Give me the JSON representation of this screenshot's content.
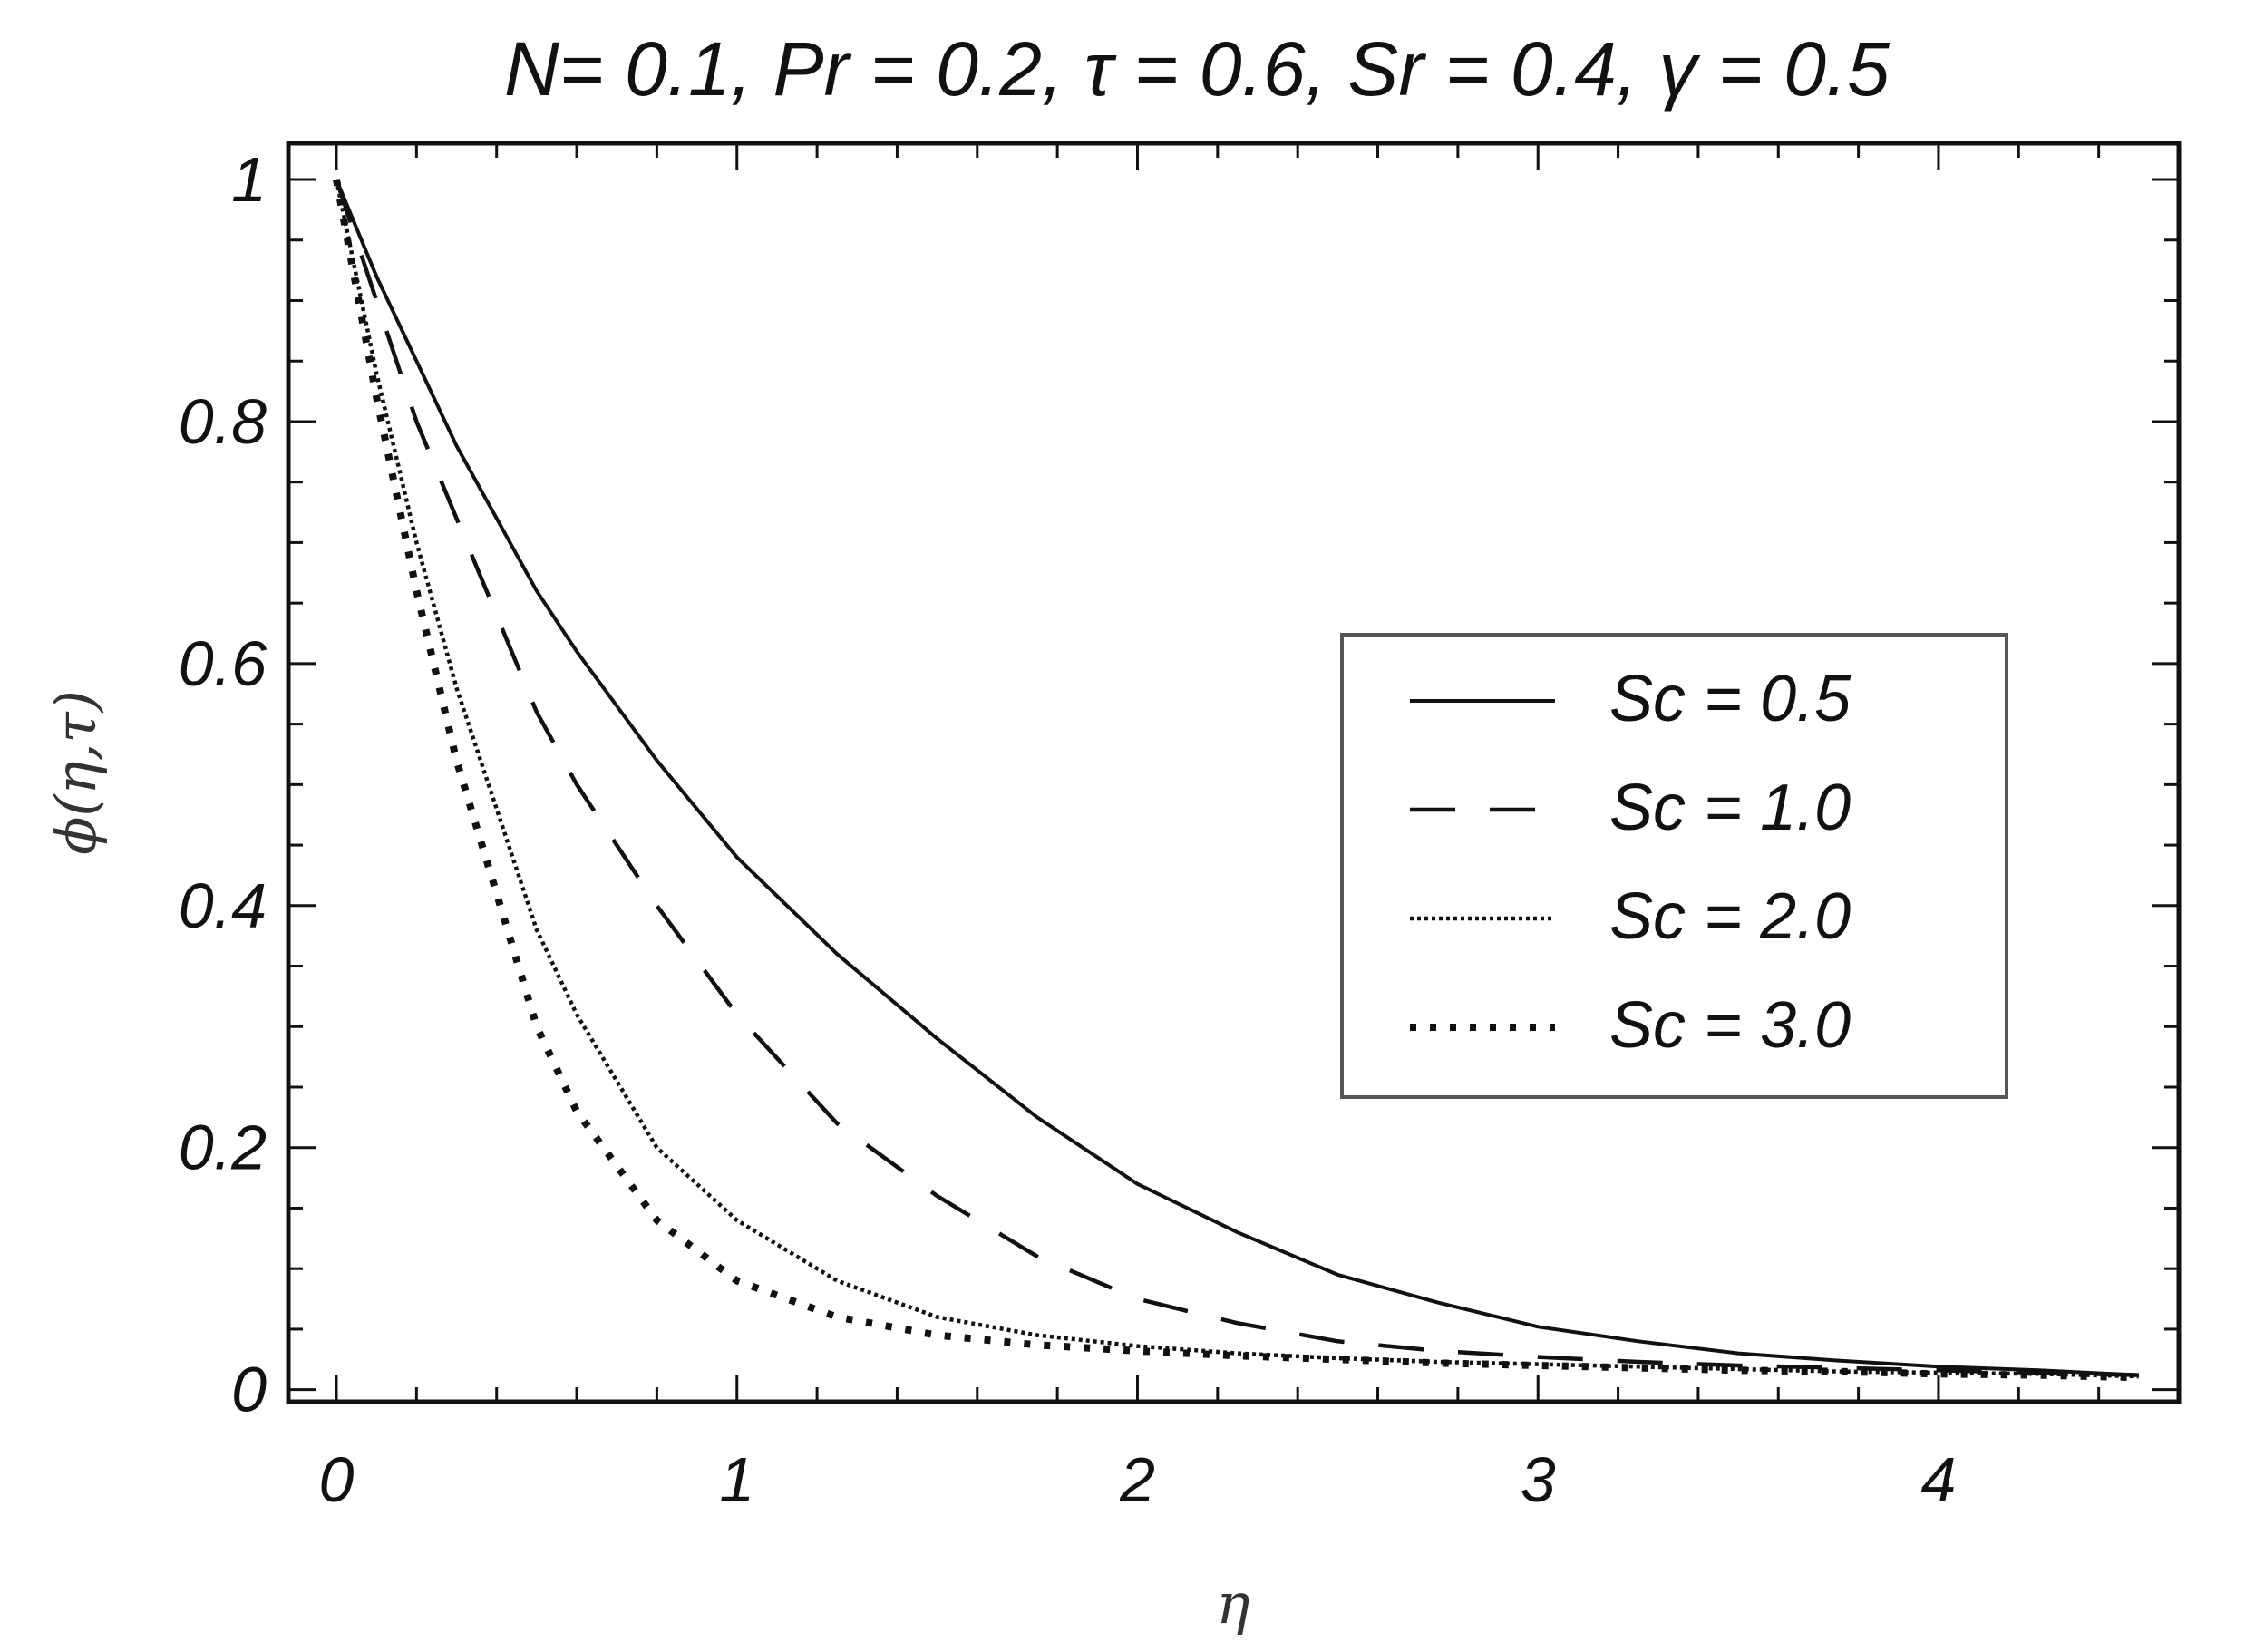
{
  "chart_data": {
    "type": "line",
    "title": "N= 0.1, Pr = 0.2, τ = 0.6, Sr = 0.4, γ = 0.5",
    "xlabel": "η",
    "ylabel": "ϕ(η,τ)",
    "xlim": [
      -0.12,
      4.6
    ],
    "ylim": [
      -0.01,
      1.03
    ],
    "xticks": [
      0,
      1,
      2,
      3,
      4
    ],
    "xtick_labels": [
      "0",
      "1",
      "2",
      "3",
      "4"
    ],
    "yticks": [
      0,
      0.2,
      0.4,
      0.6,
      0.8,
      1
    ],
    "ytick_labels": [
      "0",
      "0.2",
      "0.4",
      "0.6",
      "0.8",
      "1"
    ],
    "grid": false,
    "legend_position": "center-right",
    "x": [
      0,
      0.1,
      0.2,
      0.3,
      0.4,
      0.5,
      0.6,
      0.8,
      1.0,
      1.25,
      1.5,
      1.75,
      2.0,
      2.25,
      2.5,
      2.75,
      3.0,
      3.25,
      3.5,
      3.75,
      4.0,
      4.25,
      4.5
    ],
    "series": [
      {
        "name": "Sc = 0.5",
        "style": "solid",
        "values": [
          1.0,
          0.92,
          0.85,
          0.78,
          0.72,
          0.66,
          0.61,
          0.52,
          0.44,
          0.36,
          0.29,
          0.225,
          0.17,
          0.13,
          0.095,
          0.072,
          0.052,
          0.04,
          0.03,
          0.024,
          0.019,
          0.016,
          0.012
        ]
      },
      {
        "name": "Sc = 1.0",
        "style": "dashed",
        "values": [
          1.0,
          0.9,
          0.8,
          0.72,
          0.64,
          0.56,
          0.5,
          0.4,
          0.31,
          0.22,
          0.16,
          0.11,
          0.075,
          0.055,
          0.04,
          0.032,
          0.027,
          0.023,
          0.02,
          0.018,
          0.016,
          0.014,
          0.012
        ]
      },
      {
        "name": "Sc = 2.0",
        "style": "fine-dotted",
        "values": [
          1.0,
          0.84,
          0.7,
          0.58,
          0.48,
          0.38,
          0.31,
          0.2,
          0.14,
          0.09,
          0.06,
          0.045,
          0.036,
          0.03,
          0.026,
          0.023,
          0.021,
          0.019,
          0.017,
          0.015,
          0.014,
          0.013,
          0.011
        ]
      },
      {
        "name": "Sc = 3.0",
        "style": "dotted",
        "values": [
          1.0,
          0.82,
          0.66,
          0.52,
          0.41,
          0.3,
          0.23,
          0.14,
          0.09,
          0.06,
          0.045,
          0.037,
          0.032,
          0.028,
          0.025,
          0.022,
          0.02,
          0.018,
          0.016,
          0.015,
          0.013,
          0.012,
          0.01
        ]
      }
    ]
  }
}
